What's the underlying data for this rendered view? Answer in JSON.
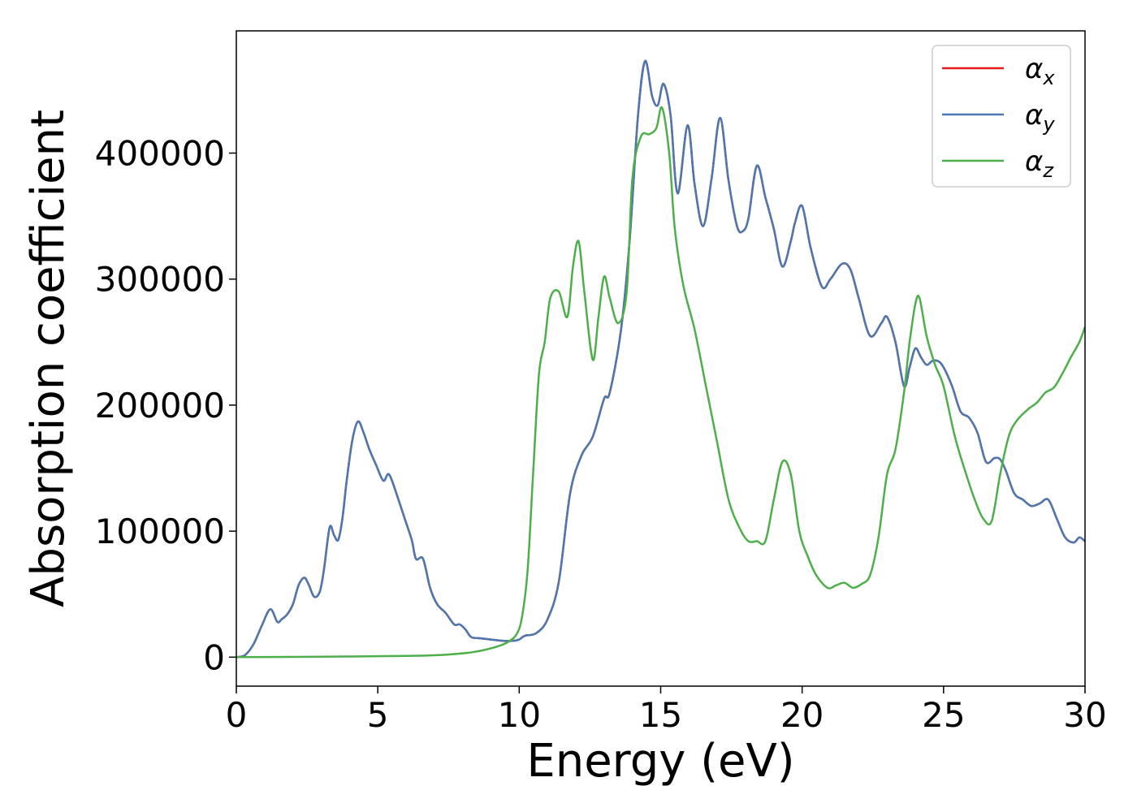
{
  "chart_data": {
    "type": "line",
    "title": "",
    "xlabel": "Energy (eV)",
    "ylabel": "Absorption coefficient",
    "xlim": [
      0,
      30
    ],
    "ylim": [
      -23000,
      497000
    ],
    "xticks": [
      0,
      5,
      10,
      15,
      20,
      25,
      30
    ],
    "yticks": [
      0,
      100000,
      200000,
      300000,
      400000
    ],
    "grid": false,
    "legend_position": "top-right",
    "series": [
      {
        "name": "αx",
        "legend_base": "α",
        "legend_sub": "x",
        "color": "#e41a1c",
        "x": [
          0,
          0.3,
          0.6,
          0.9,
          1.2,
          1.45,
          1.6,
          1.8,
          2.0,
          2.2,
          2.4,
          2.55,
          2.75,
          2.95,
          3.1,
          3.3,
          3.45,
          3.6,
          3.75,
          3.9,
          4.1,
          4.3,
          4.5,
          4.7,
          4.95,
          5.2,
          5.4,
          5.7,
          5.95,
          6.2,
          6.35,
          6.6,
          6.85,
          7.1,
          7.4,
          7.7,
          7.9,
          8.1,
          8.3,
          8.6,
          9.0,
          9.4,
          9.8,
          10.0,
          10.2,
          10.6,
          11.0,
          11.4,
          11.8,
          12.2,
          12.6,
          13.0,
          13.2,
          13.6,
          13.9,
          14.2,
          14.45,
          14.7,
          14.9,
          15.1,
          15.35,
          15.6,
          15.95,
          16.2,
          16.5,
          16.8,
          17.1,
          17.4,
          17.7,
          17.9,
          18.1,
          18.4,
          18.7,
          19.0,
          19.3,
          19.6,
          19.75,
          20.0,
          20.3,
          20.7,
          21.0,
          21.4,
          21.7,
          22.0,
          22.4,
          22.8,
          23.0,
          23.3,
          23.6,
          23.8,
          24.0,
          24.2,
          24.4,
          24.6,
          24.8,
          25.0,
          25.3,
          25.6,
          25.9,
          26.2,
          26.5,
          26.8,
          27.0,
          27.2,
          27.5,
          27.8,
          28.1,
          28.4,
          28.7,
          29.0,
          29.3,
          29.6,
          29.8,
          30.0
        ],
        "y": [
          0,
          1500,
          10000,
          25000,
          38000,
          28000,
          30000,
          34000,
          42000,
          57000,
          63000,
          58000,
          48000,
          52000,
          70000,
          103000,
          97000,
          93000,
          110000,
          140000,
          172000,
          187000,
          178000,
          165000,
          152000,
          140000,
          145000,
          127000,
          110000,
          93000,
          78000,
          78000,
          55000,
          42000,
          35000,
          26000,
          26000,
          22000,
          16000,
          15000,
          14000,
          13000,
          13000,
          14000,
          17000,
          19000,
          30000,
          60000,
          130000,
          160000,
          175000,
          205000,
          210000,
          260000,
          330000,
          430000,
          473000,
          445000,
          438000,
          455000,
          430000,
          368000,
          422000,
          375000,
          342000,
          380000,
          428000,
          378000,
          342000,
          338000,
          348000,
          390000,
          365000,
          340000,
          310000,
          330000,
          345000,
          358000,
          325000,
          294000,
          300000,
          312000,
          308000,
          285000,
          255000,
          265000,
          270000,
          250000,
          215000,
          230000,
          245000,
          238000,
          232000,
          235000,
          235000,
          230000,
          215000,
          195000,
          190000,
          178000,
          155000,
          158000,
          157000,
          148000,
          130000,
          125000,
          120000,
          122000,
          125000,
          110000,
          95000,
          91000,
          95000,
          92000
        ]
      },
      {
        "name": "αy",
        "legend_base": "α",
        "legend_sub": "y",
        "color": "#4a78b0",
        "x": [
          0,
          0.3,
          0.6,
          0.9,
          1.2,
          1.45,
          1.6,
          1.8,
          2.0,
          2.2,
          2.4,
          2.55,
          2.75,
          2.95,
          3.1,
          3.3,
          3.45,
          3.6,
          3.75,
          3.9,
          4.1,
          4.3,
          4.5,
          4.7,
          4.95,
          5.2,
          5.4,
          5.7,
          5.95,
          6.2,
          6.35,
          6.6,
          6.85,
          7.1,
          7.4,
          7.7,
          7.9,
          8.1,
          8.3,
          8.6,
          9.0,
          9.4,
          9.8,
          10.0,
          10.2,
          10.6,
          11.0,
          11.4,
          11.8,
          12.2,
          12.6,
          13.0,
          13.2,
          13.6,
          13.9,
          14.2,
          14.45,
          14.7,
          14.9,
          15.1,
          15.35,
          15.6,
          15.95,
          16.2,
          16.5,
          16.8,
          17.1,
          17.4,
          17.7,
          17.9,
          18.1,
          18.4,
          18.7,
          19.0,
          19.3,
          19.6,
          19.75,
          20.0,
          20.3,
          20.7,
          21.0,
          21.4,
          21.7,
          22.0,
          22.4,
          22.8,
          23.0,
          23.3,
          23.6,
          23.8,
          24.0,
          24.2,
          24.4,
          24.6,
          24.8,
          25.0,
          25.3,
          25.6,
          25.9,
          26.2,
          26.5,
          26.8,
          27.0,
          27.2,
          27.5,
          27.8,
          28.1,
          28.4,
          28.7,
          29.0,
          29.3,
          29.6,
          29.8,
          30.0
        ],
        "y": [
          0,
          1500,
          10000,
          25000,
          38000,
          28000,
          30000,
          34000,
          42000,
          57000,
          63000,
          58000,
          48000,
          52000,
          70000,
          103000,
          97000,
          93000,
          110000,
          140000,
          172000,
          187000,
          178000,
          165000,
          152000,
          140000,
          145000,
          127000,
          110000,
          93000,
          78000,
          78000,
          55000,
          42000,
          35000,
          26000,
          26000,
          22000,
          16000,
          15000,
          14000,
          13000,
          13000,
          14000,
          17000,
          19000,
          30000,
          60000,
          130000,
          160000,
          175000,
          205000,
          210000,
          260000,
          330000,
          430000,
          473000,
          445000,
          438000,
          455000,
          430000,
          368000,
          422000,
          375000,
          342000,
          380000,
          428000,
          378000,
          342000,
          338000,
          348000,
          390000,
          365000,
          340000,
          310000,
          330000,
          345000,
          358000,
          325000,
          294000,
          300000,
          312000,
          308000,
          285000,
          255000,
          265000,
          270000,
          250000,
          215000,
          230000,
          245000,
          238000,
          232000,
          235000,
          235000,
          230000,
          215000,
          195000,
          190000,
          178000,
          155000,
          158000,
          157000,
          148000,
          130000,
          125000,
          120000,
          122000,
          125000,
          110000,
          95000,
          91000,
          95000,
          92000
        ]
      },
      {
        "name": "αz",
        "legend_base": "α",
        "legend_sub": "z",
        "color": "#4daf4a",
        "x": [
          0,
          2,
          4,
          6,
          7,
          8,
          8.5,
          9,
          9.3,
          9.6,
          9.9,
          10.1,
          10.3,
          10.5,
          10.7,
          10.9,
          11.1,
          11.4,
          11.7,
          11.9,
          12.1,
          12.3,
          12.6,
          12.8,
          13.0,
          13.2,
          13.5,
          13.8,
          14.0,
          14.3,
          14.6,
          14.85,
          15.05,
          15.3,
          15.5,
          15.8,
          16.2,
          16.6,
          17.0,
          17.4,
          17.8,
          18.1,
          18.4,
          18.7,
          19.0,
          19.3,
          19.6,
          19.9,
          20.2,
          20.5,
          20.9,
          21.2,
          21.5,
          21.8,
          22.1,
          22.4,
          22.7,
          23.0,
          23.3,
          23.6,
          23.8,
          24.0,
          24.15,
          24.4,
          24.7,
          25.0,
          25.4,
          25.8,
          26.1,
          26.4,
          26.7,
          27.0,
          27.3,
          27.6,
          28.0,
          28.3,
          28.6,
          28.9,
          29.2,
          29.5,
          29.8,
          30.0
        ],
        "y": [
          0,
          200,
          500,
          1000,
          1500,
          3000,
          4500,
          7000,
          9000,
          12000,
          18000,
          32000,
          70000,
          150000,
          225000,
          250000,
          285000,
          290000,
          270000,
          310000,
          330000,
          290000,
          236000,
          270000,
          302000,
          285000,
          265000,
          290000,
          380000,
          413000,
          415000,
          420000,
          436000,
          400000,
          340000,
          295000,
          260000,
          215000,
          170000,
          125000,
          102000,
          92000,
          92000,
          92000,
          125000,
          155000,
          145000,
          100000,
          80000,
          65000,
          55000,
          57000,
          59000,
          55000,
          58000,
          65000,
          95000,
          145000,
          165000,
          210000,
          250000,
          280000,
          285000,
          255000,
          232000,
          215000,
          175000,
          145000,
          125000,
          110000,
          108000,
          145000,
          175000,
          188000,
          197000,
          202000,
          210000,
          214000,
          225000,
          238000,
          250000,
          262000
        ]
      }
    ]
  }
}
